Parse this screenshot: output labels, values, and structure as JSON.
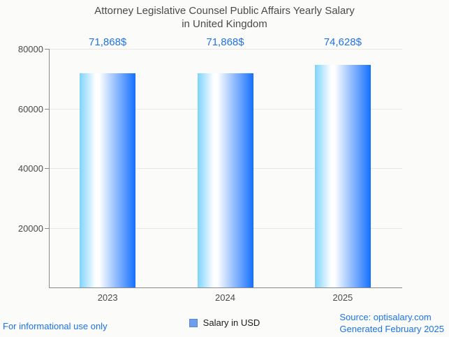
{
  "title": "Attorney Legislative Counsel Public Affairs Yearly Salary\nin United Kingdom",
  "chart_data": {
    "type": "bar",
    "title": "Attorney Legislative Counsel Public Affairs Yearly Salary in United Kingdom",
    "categories": [
      "2023",
      "2024",
      "2025"
    ],
    "series": [
      {
        "name": "Salary in USD",
        "values": [
          71868,
          71868,
          74628
        ],
        "value_labels": [
          "71,868$",
          "71,868$",
          "74,628$"
        ]
      }
    ],
    "xlabel": "",
    "ylabel": "",
    "ylim": [
      0,
      80000
    ],
    "yticks": [
      20000,
      40000,
      60000,
      80000
    ],
    "ytick_labels": [
      "20000",
      "40000",
      "60000",
      "80000"
    ],
    "grid": "horizontal",
    "legend_position": "bottom-center",
    "colors": {
      "bar_gradient_left": "#7dd3fc",
      "bar_gradient_middle": "#ffffff",
      "bar_gradient_right": "#1570fd",
      "value_label": "#2172e8",
      "axis_line": "#8a8a8a",
      "gridline": "#e7e7e4",
      "tick_text": "#4a4a4a",
      "background": "#fbfbf9"
    }
  },
  "legend": {
    "label": "Salary in USD",
    "swatch_color": "#6d9eeb"
  },
  "footer": {
    "left_note": "For informational use only",
    "source": "Source: optisalary.com",
    "generated": "Generated February 2025"
  }
}
